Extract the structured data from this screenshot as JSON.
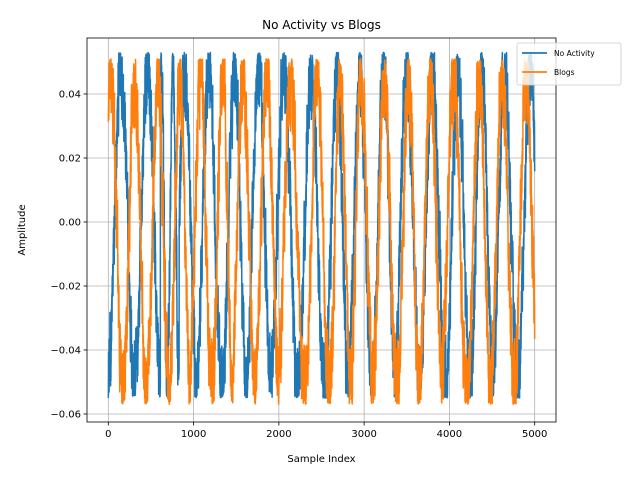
{
  "chart_data": {
    "type": "line",
    "title": "No Activity vs Blogs",
    "xlabel": "Sample Index",
    "ylabel": "Amplitude",
    "xlim": [
      -250,
      5250
    ],
    "ylim": [
      -0.0625,
      0.0575
    ],
    "x_ticks": [
      0,
      1000,
      2000,
      3000,
      4000,
      5000
    ],
    "x_tick_labels": [
      "0",
      "1000",
      "2000",
      "3000",
      "4000",
      "5000"
    ],
    "y_ticks": [
      -0.06,
      -0.04,
      -0.02,
      0.0,
      0.02,
      0.04
    ],
    "y_tick_labels": [
      "−0.06",
      "−0.04",
      "−0.02",
      "0.00",
      "0.02",
      "0.04"
    ],
    "grid": true,
    "legend_placement": "top-right",
    "n_samples": 5001,
    "series": [
      {
        "name": "No Activity",
        "color": "#1f77b4",
        "approx_range": [
          -0.055,
          0.053
        ],
        "approx_peaks_x": [
          150,
          460,
          760,
          900,
          1180,
          1480,
          1760,
          2060,
          2380,
          2680,
          2950,
          3230,
          3500,
          3800,
          4100,
          4380,
          4650,
          4950
        ]
      },
      {
        "name": "Blogs",
        "color": "#ff7f0e",
        "approx_range": [
          -0.057,
          0.051
        ],
        "approx_peaks_x": [
          30,
          310,
          580,
          840,
          1080,
          1340,
          1580,
          1860,
          2140,
          2450,
          2720,
          2970,
          3240,
          3520,
          3780,
          4050,
          4350,
          4620,
          4900
        ]
      }
    ]
  }
}
